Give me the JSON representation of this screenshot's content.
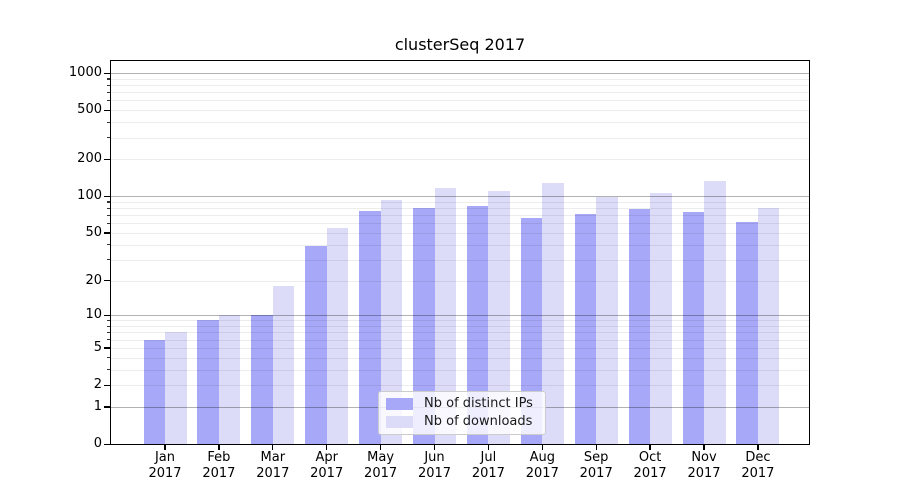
{
  "chart_data": {
    "type": "bar",
    "title": "clusterSeq 2017",
    "categories": [
      "Jan",
      "Feb",
      "Mar",
      "Apr",
      "May",
      "Jun",
      "Jul",
      "Aug",
      "Sep",
      "Oct",
      "Nov",
      "Dec"
    ],
    "x_tick_year": "2017",
    "series": [
      {
        "name": "Nb of distinct IPs",
        "color": "#a8a8f8",
        "values": [
          6,
          9,
          10,
          39,
          75,
          80,
          83,
          66,
          72,
          78,
          74,
          62
        ]
      },
      {
        "name": "Nb of downloads",
        "color": "#dcdcf9",
        "values": [
          7,
          10,
          18,
          55,
          93,
          117,
          110,
          127,
          99,
          107,
          134,
          80
        ]
      }
    ],
    "xlabel": "",
    "ylabel": "",
    "yscale": "log1p",
    "ylim": [
      0,
      1276
    ],
    "y_tick_labels": [
      0,
      1,
      2,
      5,
      10,
      20,
      50,
      100,
      200,
      500,
      1000
    ],
    "y_major_gridlines": [
      1,
      10,
      100,
      1000
    ],
    "y_minor_gridline_decades": [
      1,
      10,
      100
    ],
    "grid": "both",
    "legend_position": "lower-center",
    "colors": {
      "major_grid": "#b3b3b3",
      "minor_grid": "#ebebeb",
      "spine": "#000000",
      "background": "#ffffff"
    }
  }
}
